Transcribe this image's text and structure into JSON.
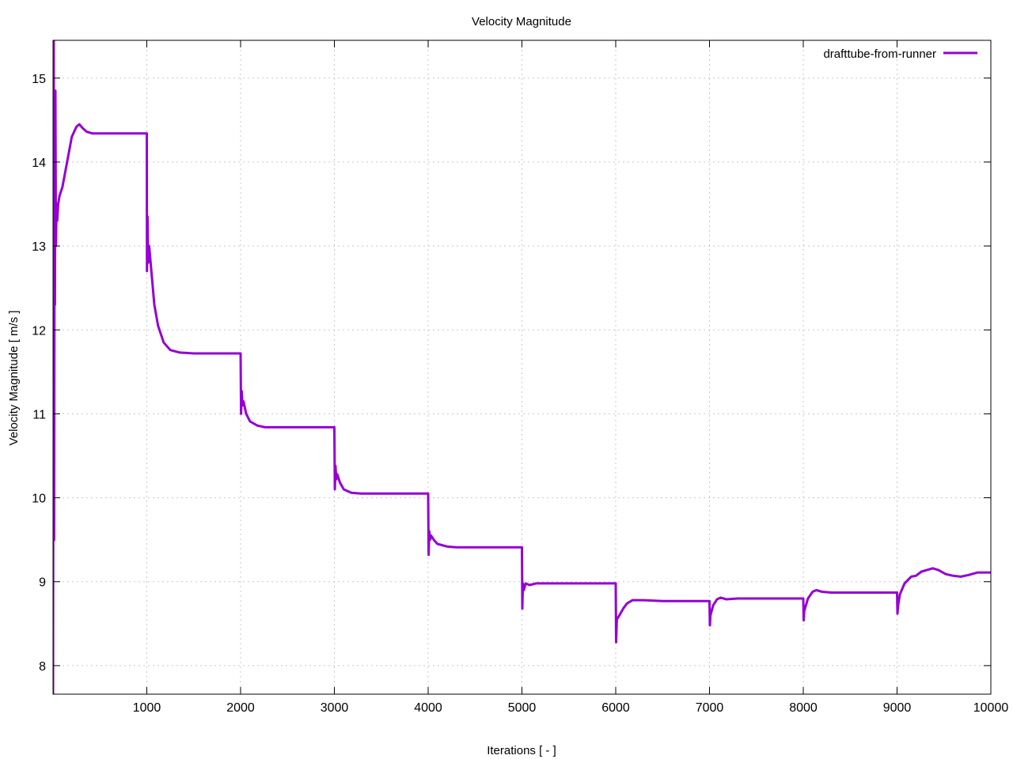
{
  "chart_data": {
    "type": "line",
    "title": "Velocity Magnitude",
    "xlabel": "Iterations [ - ]",
    "ylabel": "Velocity Magnitude [ m/s ]",
    "xlim": [
      0,
      10000
    ],
    "ylim": [
      7.66,
      15.45
    ],
    "x_ticks": [
      1000,
      2000,
      3000,
      4000,
      5000,
      6000,
      7000,
      8000,
      9000,
      10000
    ],
    "y_ticks": [
      8,
      9,
      10,
      11,
      12,
      13,
      14,
      15
    ],
    "grid": true,
    "legend_position": "top-right",
    "series": [
      {
        "name": "drafttube-from-runner",
        "color": "#9400d3",
        "points": [
          [
            0,
            7.66
          ],
          [
            8,
            15.45
          ],
          [
            12,
            9.5
          ],
          [
            16,
            13.5
          ],
          [
            20,
            12.3
          ],
          [
            25,
            14.85
          ],
          [
            30,
            13.0
          ],
          [
            38,
            13.5
          ],
          [
            45,
            13.3
          ],
          [
            55,
            13.5
          ],
          [
            70,
            13.6
          ],
          [
            100,
            13.7
          ],
          [
            150,
            14.0
          ],
          [
            200,
            14.3
          ],
          [
            250,
            14.42
          ],
          [
            280,
            14.45
          ],
          [
            320,
            14.4
          ],
          [
            360,
            14.36
          ],
          [
            420,
            14.34
          ],
          [
            600,
            14.34
          ],
          [
            990,
            14.34
          ],
          [
            1000,
            14.34
          ],
          [
            1002,
            12.7
          ],
          [
            1008,
            13.35
          ],
          [
            1014,
            12.8
          ],
          [
            1025,
            13.0
          ],
          [
            1045,
            12.75
          ],
          [
            1080,
            12.3
          ],
          [
            1120,
            12.05
          ],
          [
            1180,
            11.85
          ],
          [
            1250,
            11.76
          ],
          [
            1350,
            11.73
          ],
          [
            1500,
            11.72
          ],
          [
            1990,
            11.72
          ],
          [
            2000,
            11.72
          ],
          [
            2005,
            11.0
          ],
          [
            2012,
            11.27
          ],
          [
            2020,
            11.1
          ],
          [
            2030,
            11.15
          ],
          [
            2060,
            11.0
          ],
          [
            2100,
            10.91
          ],
          [
            2180,
            10.86
          ],
          [
            2260,
            10.84
          ],
          [
            2500,
            10.84
          ],
          [
            2995,
            10.84
          ],
          [
            3000,
            10.84
          ],
          [
            3005,
            10.1
          ],
          [
            3012,
            10.38
          ],
          [
            3020,
            10.22
          ],
          [
            3030,
            10.28
          ],
          [
            3060,
            10.18
          ],
          [
            3100,
            10.1
          ],
          [
            3180,
            10.06
          ],
          [
            3280,
            10.05
          ],
          [
            3500,
            10.05
          ],
          [
            3995,
            10.05
          ],
          [
            4000,
            10.05
          ],
          [
            4005,
            9.32
          ],
          [
            4012,
            9.6
          ],
          [
            4020,
            9.5
          ],
          [
            4030,
            9.55
          ],
          [
            4060,
            9.5
          ],
          [
            4100,
            9.45
          ],
          [
            4200,
            9.42
          ],
          [
            4300,
            9.41
          ],
          [
            4995,
            9.41
          ],
          [
            5000,
            9.41
          ],
          [
            5004,
            8.68
          ],
          [
            5010,
            8.98
          ],
          [
            5020,
            8.9
          ],
          [
            5040,
            8.98
          ],
          [
            5080,
            8.96
          ],
          [
            5150,
            8.98
          ],
          [
            5300,
            8.98
          ],
          [
            5995,
            8.98
          ],
          [
            6000,
            8.98
          ],
          [
            6004,
            8.28
          ],
          [
            6012,
            8.55
          ],
          [
            6040,
            8.6
          ],
          [
            6080,
            8.68
          ],
          [
            6120,
            8.74
          ],
          [
            6180,
            8.78
          ],
          [
            6300,
            8.78
          ],
          [
            6500,
            8.77
          ],
          [
            6800,
            8.77
          ],
          [
            6995,
            8.77
          ],
          [
            7000,
            8.77
          ],
          [
            7004,
            8.48
          ],
          [
            7010,
            8.6
          ],
          [
            7040,
            8.72
          ],
          [
            7080,
            8.79
          ],
          [
            7120,
            8.81
          ],
          [
            7180,
            8.79
          ],
          [
            7300,
            8.8
          ],
          [
            7600,
            8.8
          ],
          [
            7995,
            8.8
          ],
          [
            8000,
            8.8
          ],
          [
            8004,
            8.54
          ],
          [
            8010,
            8.65
          ],
          [
            8050,
            8.8
          ],
          [
            8100,
            8.88
          ],
          [
            8140,
            8.9
          ],
          [
            8200,
            8.88
          ],
          [
            8300,
            8.87
          ],
          [
            8600,
            8.87
          ],
          [
            8995,
            8.87
          ],
          [
            9000,
            8.87
          ],
          [
            9004,
            8.62
          ],
          [
            9012,
            8.72
          ],
          [
            9030,
            8.85
          ],
          [
            9080,
            8.98
          ],
          [
            9150,
            9.06
          ],
          [
            9200,
            9.07
          ],
          [
            9260,
            9.12
          ],
          [
            9320,
            9.14
          ],
          [
            9380,
            9.16
          ],
          [
            9440,
            9.14
          ],
          [
            9520,
            9.09
          ],
          [
            9600,
            9.07
          ],
          [
            9680,
            9.06
          ],
          [
            9760,
            9.08
          ],
          [
            9860,
            9.11
          ],
          [
            9940,
            9.11
          ],
          [
            10000,
            9.11
          ]
        ]
      }
    ]
  }
}
